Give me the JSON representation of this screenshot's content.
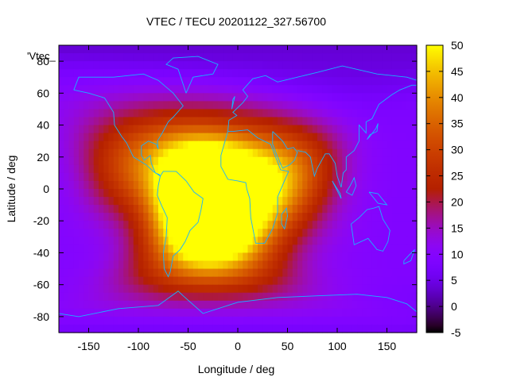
{
  "chart_data": {
    "type": "heatmap",
    "title": "VTEC / TECU 20201122_327.56700",
    "xlabel": "Longitude / deg",
    "ylabel": "Latitude / deg",
    "series_key": "'Vtec_",
    "xlim": [
      -180,
      180
    ],
    "ylim": [
      -90,
      90
    ],
    "x_ticks": [
      -150,
      -100,
      -50,
      0,
      50,
      100,
      150
    ],
    "y_ticks": [
      -80,
      -60,
      -40,
      -20,
      0,
      20,
      40,
      60,
      80
    ],
    "colorbar": {
      "range": [
        -5,
        50
      ],
      "ticks": [
        -5,
        0,
        5,
        10,
        15,
        20,
        25,
        30,
        35,
        40,
        45,
        50
      ],
      "colormap": "gnuplot rgbformulae 7,5,15 (black-purple-red-orange-yellow)"
    },
    "field": {
      "description": "Vertical total electron content (TECU) on a lon/lat grid",
      "background_value": 9,
      "grid_step_deg": 5,
      "peaks": [
        {
          "lon": -35,
          "lat": -15,
          "value": 47
        },
        {
          "lon": -60,
          "lat": 10,
          "value": 31
        },
        {
          "lon": -25,
          "lat": 5,
          "value": 37
        },
        {
          "lon": 10,
          "lat": -5,
          "value": 31
        },
        {
          "lon": 40,
          "lat": 5,
          "value": 27
        },
        {
          "lon": -115,
          "lat": 15,
          "value": 26
        },
        {
          "lon": -30,
          "lat": -40,
          "value": 29
        },
        {
          "lon": 70,
          "lat": 15,
          "value": 20
        },
        {
          "lon": 100,
          "lat": 60,
          "value": 5
        }
      ]
    },
    "coastlines_color": "#00b4ff"
  }
}
